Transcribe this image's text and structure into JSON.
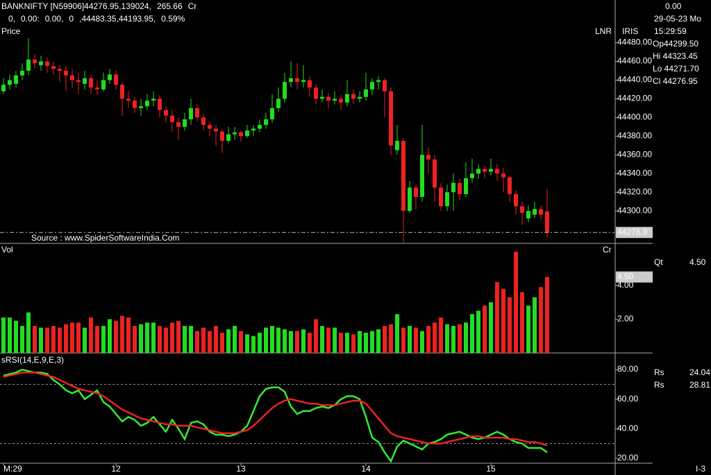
{
  "header": {
    "symbol": "BANKNIFTY [N59906]44276.95,139024,",
    "change": "265.66",
    "unit": "Cr",
    "stats": [
      {
        "text": "0,",
        "color": "#33dd33"
      },
      {
        "text": "0.00:",
        "color": "#33dd33"
      },
      {
        "text": "0.00,",
        "color": "#ee2222"
      },
      {
        "text": "0",
        "color": "#ee2222"
      },
      {
        "text": ",44483.35,44193.95,",
        "color": "#33dd33"
      },
      {
        "text": "0.59%",
        "color": "#33dd33"
      }
    ]
  },
  "side": {
    "change": "0.00",
    "date": "29-05-23 Mo",
    "time": "15:29:59",
    "lnr": "LNR",
    "iris": "IRIS",
    "ohlc": [
      {
        "text": "Op44299.50",
        "color": "#33dd33"
      },
      {
        "text": "Hi 44323.45",
        "color": "#ee2222"
      },
      {
        "text": "Lo 44271.70",
        "color": "#ffffff"
      },
      {
        "text": "Cl 44276.95",
        "color": "#ee33ee"
      }
    ],
    "qt_label": "Qt",
    "qt": "4.50",
    "rs": [
      {
        "label": "Rs",
        "value": "24.04",
        "color": "#33dd33"
      },
      {
        "label": "Rs",
        "value": "28.81",
        "color": "#ee2222"
      }
    ],
    "footer": "I-3"
  },
  "chart_data": [
    {
      "type": "candlestick",
      "label": "Price",
      "source": "Source : www.SpiderSoftwareIndia.Com",
      "up_color": "#22dd22",
      "down_color": "#ee2222",
      "ylim": [
        44266,
        44496
      ],
      "yticks": [
        {
          "value": 44300,
          "label": "44300.00"
        },
        {
          "value": 44320,
          "label": "44320.00"
        },
        {
          "value": 44340,
          "label": "44340.00"
        },
        {
          "value": 44360,
          "label": "44360.00"
        },
        {
          "value": 44380,
          "label": "44380.00"
        },
        {
          "value": 44400,
          "label": "44400.00"
        },
        {
          "value": 44420,
          "label": "44420.00"
        },
        {
          "value": 44440,
          "label": "44440.00"
        },
        {
          "value": 44460,
          "label": "44460.00"
        },
        {
          "value": 44480,
          "label": "44480.00"
        }
      ],
      "last_price": {
        "value": 44276.95,
        "label": "44276.9"
      },
      "ohlc": [
        [
          44428,
          44442,
          44425,
          44435
        ],
        [
          44435,
          44446,
          44430,
          44440
        ],
        [
          44436,
          44450,
          44432,
          44445
        ],
        [
          44445,
          44458,
          44440,
          44450
        ],
        [
          44450,
          44485,
          44445,
          44462
        ],
        [
          44462,
          44468,
          44452,
          44458
        ],
        [
          44456,
          44466,
          44450,
          44460
        ],
        [
          44460,
          44464,
          44448,
          44455
        ],
        [
          44455,
          44460,
          44446,
          44452
        ],
        [
          44452,
          44456,
          44438,
          44450
        ],
        [
          44450,
          44455,
          44428,
          44445
        ],
        [
          44445,
          44452,
          44432,
          44440
        ],
        [
          44440,
          44448,
          44425,
          44438
        ],
        [
          44436,
          44450,
          44430,
          44442
        ],
        [
          44442,
          44446,
          44425,
          44432
        ],
        [
          44432,
          44440,
          44424,
          44430
        ],
        [
          44430,
          44448,
          44428,
          44440
        ],
        [
          44440,
          44452,
          44436,
          44446
        ],
        [
          44446,
          44450,
          44430,
          44435
        ],
        [
          44435,
          44438,
          44402,
          44420
        ],
        [
          44420,
          44428,
          44410,
          44418
        ],
        [
          44418,
          44422,
          44405,
          44410
        ],
        [
          44410,
          44420,
          44402,
          44412
        ],
        [
          44412,
          44425,
          44408,
          44418
        ],
        [
          44418,
          44428,
          44412,
          44420
        ],
        [
          44420,
          44424,
          44400,
          44408
        ],
        [
          44408,
          44412,
          44395,
          44402
        ],
        [
          44402,
          44408,
          44385,
          44395
        ],
        [
          44395,
          44400,
          44376,
          44390
        ],
        [
          44390,
          44405,
          44386,
          44398
        ],
        [
          44398,
          44420,
          44392,
          44410
        ],
        [
          44410,
          44414,
          44396,
          44400
        ],
        [
          44400,
          44404,
          44386,
          44392
        ],
        [
          44392,
          44396,
          44380,
          44388
        ],
        [
          44388,
          44392,
          44370,
          44385
        ],
        [
          44385,
          44388,
          44362,
          44375
        ],
        [
          44375,
          44390,
          44372,
          44382
        ],
        [
          44382,
          44390,
          44376,
          44384
        ],
        [
          44384,
          44386,
          44374,
          44380
        ],
        [
          44380,
          44392,
          44378,
          44386
        ],
        [
          44386,
          44392,
          44380,
          44388
        ],
        [
          44388,
          44398,
          44384,
          44392
        ],
        [
          44392,
          44405,
          44388,
          44398
        ],
        [
          44398,
          44425,
          44394,
          44410
        ],
        [
          44410,
          44432,
          44406,
          44420
        ],
        [
          44420,
          44448,
          44416,
          44438
        ],
        [
          44438,
          44460,
          44432,
          44442
        ],
        [
          44442,
          44458,
          44430,
          44438
        ],
        [
          44438,
          44456,
          44432,
          44440
        ],
        [
          44440,
          44444,
          44422,
          44432
        ],
        [
          44432,
          44436,
          44414,
          44420
        ],
        [
          44420,
          44430,
          44416,
          44422
        ],
        [
          44422,
          44426,
          44410,
          44418
        ],
        [
          44418,
          44428,
          44414,
          44420
        ],
        [
          44420,
          44424,
          44408,
          44416
        ],
        [
          44416,
          44440,
          44412,
          44425
        ],
        [
          44425,
          44430,
          44414,
          44420
        ],
        [
          44420,
          44428,
          44416,
          44422
        ],
        [
          44422,
          44448,
          44418,
          44430
        ],
        [
          44430,
          44442,
          44424,
          44438
        ],
        [
          44438,
          44444,
          44430,
          44440
        ],
        [
          44440,
          44442,
          44400,
          44428
        ],
        [
          44428,
          44432,
          44360,
          44370
        ],
        [
          44365,
          44392,
          44360,
          44375
        ],
        [
          44375,
          44378,
          44266,
          44300
        ],
        [
          44300,
          44332,
          44298,
          44325
        ],
        [
          44325,
          44328,
          44302,
          44315
        ],
        [
          44315,
          44392,
          44310,
          44360
        ],
        [
          44360,
          44368,
          44340,
          44355
        ],
        [
          44355,
          44360,
          44310,
          44325
        ],
        [
          44325,
          44330,
          44300,
          44305
        ],
        [
          44305,
          44328,
          44300,
          44320
        ],
        [
          44320,
          44340,
          44300,
          44330
        ],
        [
          44330,
          44335,
          44312,
          44318
        ],
        [
          44318,
          44352,
          44315,
          44335
        ],
        [
          44335,
          44356,
          44330,
          44340
        ],
        [
          44340,
          44350,
          44334,
          44345
        ],
        [
          44345,
          44348,
          44335,
          44342
        ],
        [
          44342,
          44356,
          44338,
          44345
        ],
        [
          44345,
          44350,
          44332,
          44340
        ],
        [
          44340,
          44346,
          44320,
          44336
        ],
        [
          44336,
          44338,
          44310,
          44318
        ],
        [
          44318,
          44322,
          44296,
          44305
        ],
        [
          44305,
          44310,
          44285,
          44298
        ],
        [
          44292,
          44306,
          44288,
          44300
        ],
        [
          44296,
          44310,
          44292,
          44302
        ],
        [
          44302,
          44306,
          44290,
          44296
        ],
        [
          44299.5,
          44323.45,
          44271.7,
          44276.95
        ]
      ]
    },
    {
      "type": "bar",
      "label": "Vol",
      "unit": "Cr",
      "ylim": [
        0,
        6.45
      ],
      "yticks": [
        {
          "value": 2,
          "label": "2.00"
        },
        {
          "value": 4,
          "label": "4.00"
        }
      ],
      "last_value": {
        "value": 4.5,
        "label": "4.50"
      },
      "values": [
        2.1,
        2.1,
        1.9,
        1.6,
        2.4,
        1.6,
        1.5,
        1.5,
        1.6,
        1.5,
        1.7,
        1.8,
        1.8,
        1.5,
        2.1,
        1.6,
        1.6,
        2.0,
        1.9,
        2.2,
        2.1,
        1.6,
        1.7,
        1.8,
        1.8,
        1.6,
        1.5,
        1.8,
        1.9,
        1.6,
        1.6,
        1.3,
        1.5,
        1.3,
        1.6,
        1.2,
        1.4,
        1.6,
        1.3,
        1.1,
        1.0,
        1.2,
        1.5,
        1.6,
        1.5,
        1.4,
        1.3,
        1.3,
        1.4,
        1.2,
        2.0,
        1.6,
        1.5,
        1.5,
        1.2,
        1.2,
        1.1,
        1.3,
        1.2,
        1.3,
        1.4,
        1.6,
        1.7,
        2.3,
        1.5,
        1.6,
        1.5,
        1.3,
        1.6,
        1.8,
        2.1,
        1.7,
        1.6,
        1.7,
        1.8,
        2.3,
        2.5,
        2.8,
        3.0,
        4.2,
        3.8,
        3.3,
        6.0,
        3.6,
        2.8,
        3.3,
        3.9,
        4.5
      ]
    },
    {
      "type": "line",
      "label": "sRSI(14,E,9,E,3)",
      "ylim": [
        16.7,
        90.8
      ],
      "levels": [
        70,
        30
      ],
      "yticks": [
        {
          "value": 20,
          "label": "20.00"
        },
        {
          "value": 40,
          "label": "40.00"
        },
        {
          "value": 60,
          "label": "60.00"
        },
        {
          "value": 80,
          "label": "80.00"
        }
      ],
      "categories": [
        "M:29",
        null,
        null,
        null,
        null,
        null,
        null,
        null,
        null,
        null,
        null,
        null,
        null,
        null,
        null,
        null,
        null,
        null,
        "12",
        null,
        null,
        null,
        null,
        null,
        null,
        null,
        null,
        null,
        null,
        null,
        null,
        null,
        null,
        null,
        null,
        null,
        null,
        null,
        "13",
        null,
        null,
        null,
        null,
        null,
        null,
        null,
        null,
        null,
        null,
        null,
        null,
        null,
        null,
        null,
        null,
        null,
        null,
        null,
        "14",
        null,
        null,
        null,
        null,
        null,
        null,
        null,
        null,
        null,
        null,
        null,
        null,
        null,
        null,
        null,
        null,
        null,
        null,
        null,
        "15",
        null,
        null,
        null,
        null,
        null,
        null,
        null,
        null,
        null
      ],
      "series": [
        {
          "color": "#33ee33",
          "values": [
            76,
            77,
            78,
            80,
            79,
            78,
            78,
            77,
            73,
            70,
            66,
            64,
            66,
            60,
            63,
            66,
            58,
            55,
            50,
            45,
            48,
            46,
            42,
            44,
            48,
            43,
            38,
            46,
            40,
            33,
            44,
            45,
            43,
            38,
            36,
            36,
            35,
            36,
            38,
            42,
            52,
            62,
            67,
            68,
            68,
            65,
            55,
            50,
            52,
            52,
            54,
            55,
            54,
            56,
            60,
            62,
            62,
            60,
            48,
            34,
            31,
            24,
            18,
            28,
            32,
            30,
            28,
            26,
            30,
            31,
            33,
            36,
            37,
            38,
            36,
            34,
            33,
            34,
            36,
            38,
            36,
            33,
            31,
            30,
            27,
            27,
            27,
            24.04
          ]
        },
        {
          "color": "#ee2222",
          "values": [
            75,
            76,
            77,
            78,
            78,
            78,
            77,
            76,
            75,
            73,
            71,
            69,
            67,
            66,
            65,
            64,
            62,
            59,
            56,
            53,
            51,
            49,
            47,
            46,
            45,
            44,
            43,
            43,
            42,
            42,
            42,
            41,
            40,
            39,
            38,
            37,
            37,
            37,
            38,
            39,
            42,
            46,
            50,
            54,
            57,
            59,
            60,
            59,
            58,
            57,
            57,
            56,
            56,
            56,
            57,
            58,
            59,
            59,
            57,
            52,
            47,
            42,
            37,
            35,
            34,
            33,
            32,
            31,
            30,
            30,
            30,
            31,
            32,
            33,
            34,
            35,
            35,
            34,
            34,
            34,
            34,
            33,
            33,
            32,
            31,
            31,
            30,
            28.81
          ]
        }
      ]
    }
  ]
}
